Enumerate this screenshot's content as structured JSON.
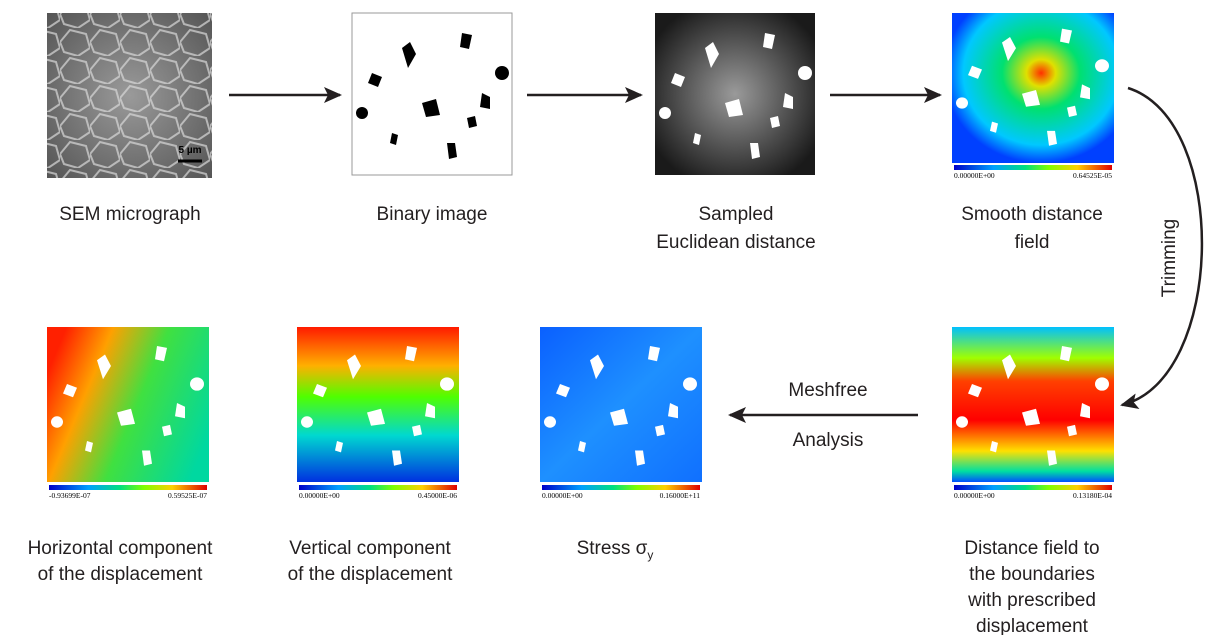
{
  "nodes": [
    {
      "lines": [
        "SEM micrograph"
      ],
      "scale_bar": "5 µm"
    },
    {
      "lines": [
        "Binary image"
      ]
    },
    {
      "lines": [
        "Sampled",
        "Euclidean distance"
      ]
    },
    {
      "lines": [
        "Smooth distance",
        "field"
      ],
      "colorbar": [
        "0.00000E+00",
        "0.64525E-05"
      ]
    },
    {
      "lines": [
        "Distance field to",
        "the boundaries",
        "with prescribed",
        "displacement"
      ],
      "colorbar": [
        "0.00000E+00",
        "0.13180E-04"
      ]
    },
    {
      "lines": [
        "Stress σ"
      ],
      "subscript": "y",
      "colorbar": [
        "0.00000E+00",
        "0.16000E+11"
      ]
    },
    {
      "lines": [
        "Vertical component",
        "of the displacement"
      ],
      "colorbar": [
        "0.00000E+00",
        "0.45000E-06"
      ]
    },
    {
      "lines": [
        "Horizontal component",
        "of the displacement"
      ],
      "colorbar": [
        "-0.93699E-07",
        "0.59525E-07"
      ]
    }
  ],
  "edges": [
    {
      "label": "Trimming"
    },
    {
      "label_lines": [
        "Meshfree",
        "Analysis"
      ]
    }
  ]
}
